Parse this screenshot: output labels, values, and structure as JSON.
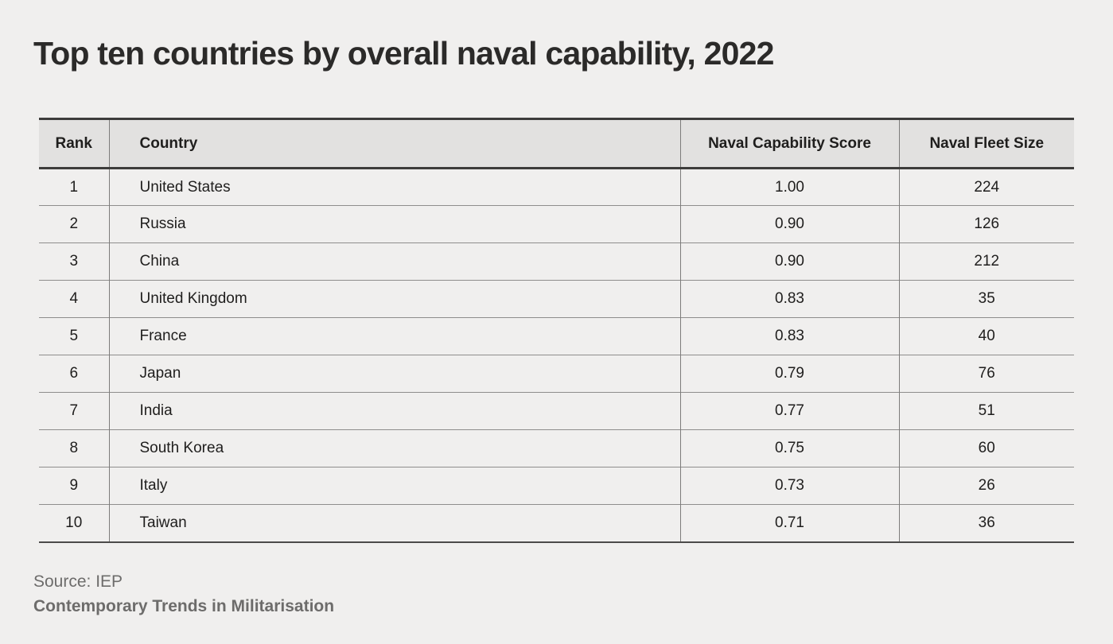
{
  "title": "Top ten countries by overall naval capability, 2022",
  "source": {
    "line1": "Source: IEP",
    "line2": "Contemporary Trends in Militarisation"
  },
  "colors": {
    "page_background": "#f0efee",
    "header_background": "#e2e1e0",
    "heavy_border": "#3d3c3b",
    "row_separator": "#8e8d8c",
    "text_primary": "#1f1e1d",
    "text_source": "#6d6c6b"
  },
  "chart_data": {
    "type": "table",
    "title": "Top ten countries by overall naval capability, 2022",
    "columns": [
      "Rank",
      "Country",
      "Naval Capability Score",
      "Naval Fleet Size"
    ],
    "rows": [
      [
        "1",
        "United States",
        "1.00",
        "224"
      ],
      [
        "2",
        "Russia",
        "0.90",
        "126"
      ],
      [
        "3",
        "China",
        "0.90",
        "212"
      ],
      [
        "4",
        "United Kingdom",
        "0.83",
        "35"
      ],
      [
        "5",
        "France",
        "0.83",
        "40"
      ],
      [
        "6",
        "Japan",
        "0.79",
        "76"
      ],
      [
        "7",
        "India",
        "0.77",
        "51"
      ],
      [
        "8",
        "South Korea",
        "0.75",
        "60"
      ],
      [
        "9",
        "Italy",
        "0.73",
        "26"
      ],
      [
        "10",
        "Taiwan",
        "0.71",
        "36"
      ]
    ]
  }
}
